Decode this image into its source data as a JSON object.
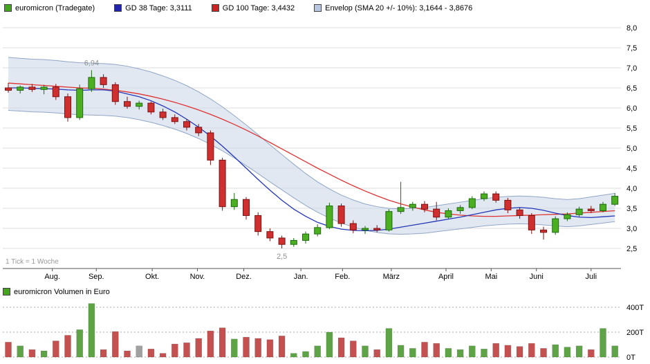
{
  "legend": {
    "items": [
      {
        "label": "euromicron (Tradegate)",
        "color": "#43a51c"
      },
      {
        "label": "GD 38 Tage: 3,3111",
        "color": "#2222aa"
      },
      {
        "label": "GD 100 Tage: 3,4432",
        "color": "#cc2222"
      },
      {
        "label": "Envelop (SMA 20 +/- 10%): 3,1644 - 3,8676",
        "color": "#b7c6e2"
      }
    ]
  },
  "volume_legend": {
    "label": "euromicron Volumen in Euro",
    "color": "#43a51c"
  },
  "chart_data": {
    "type": "candlestick",
    "title": "euromicron (Tradegate)",
    "tick_note": "1 Tick = 1 Woche",
    "months": [
      "Aug.",
      "Sep.",
      "Okt.",
      "Nov.",
      "Dez.",
      "Jan.",
      "Feb.",
      "März",
      "April",
      "Mai",
      "Juni",
      "Juli"
    ],
    "month_week_positions": [
      3.7,
      7.4,
      12.1,
      15.9,
      19.8,
      24.6,
      28.1,
      32.2,
      36.8,
      40.6,
      44.4,
      49.0
    ],
    "ylim": [
      2.0,
      8.0
    ],
    "y_ticks": [
      {
        "v": 8.0,
        "label": "8,0"
      },
      {
        "v": 7.5,
        "label": "7,5"
      },
      {
        "v": 7.0,
        "label": "7,0"
      },
      {
        "v": 6.5,
        "label": "6,5"
      },
      {
        "v": 6.0,
        "label": "6,0"
      },
      {
        "v": 5.5,
        "label": "5,5"
      },
      {
        "v": 5.0,
        "label": "5,0"
      },
      {
        "v": 4.5,
        "label": "4,5"
      },
      {
        "v": 4.0,
        "label": "4,0"
      },
      {
        "v": 3.5,
        "label": "3,5"
      },
      {
        "v": 3.0,
        "label": "3,0"
      },
      {
        "v": 2.5,
        "label": "2,5"
      }
    ],
    "annotations": [
      {
        "week": 7,
        "value": 6.94,
        "label": "6,94",
        "pos": "above"
      },
      {
        "week": 23,
        "value": 2.5,
        "label": "2,5",
        "pos": "below"
      }
    ],
    "candles": [
      [
        6.5,
        6.62,
        6.38,
        6.44
      ],
      [
        6.44,
        6.56,
        6.36,
        6.52
      ],
      [
        6.52,
        6.6,
        6.4,
        6.46
      ],
      [
        6.46,
        6.58,
        6.34,
        6.52
      ],
      [
        6.52,
        6.6,
        6.2,
        6.28
      ],
      [
        6.28,
        6.36,
        5.66,
        5.76
      ],
      [
        5.76,
        6.58,
        5.7,
        6.48
      ],
      [
        6.48,
        6.94,
        6.4,
        6.76
      ],
      [
        6.76,
        6.84,
        6.5,
        6.58
      ],
      [
        6.58,
        6.64,
        6.08,
        6.16
      ],
      [
        6.16,
        6.28,
        5.98,
        6.04
      ],
      [
        6.04,
        6.18,
        5.96,
        6.12
      ],
      [
        6.12,
        6.16,
        5.84,
        5.9
      ],
      [
        5.9,
        5.98,
        5.7,
        5.76
      ],
      [
        5.76,
        5.84,
        5.6,
        5.66
      ],
      [
        5.66,
        5.72,
        5.44,
        5.52
      ],
      [
        5.52,
        5.6,
        5.3,
        5.38
      ],
      [
        5.38,
        5.44,
        4.58,
        4.7
      ],
      [
        4.7,
        4.76,
        3.44,
        3.54
      ],
      [
        3.54,
        3.88,
        3.46,
        3.72
      ],
      [
        3.72,
        3.78,
        3.22,
        3.32
      ],
      [
        3.32,
        3.4,
        2.82,
        2.92
      ],
      [
        2.92,
        3.0,
        2.68,
        2.76
      ],
      [
        2.76,
        2.82,
        2.5,
        2.6
      ],
      [
        2.6,
        2.76,
        2.54,
        2.7
      ],
      [
        2.7,
        2.92,
        2.62,
        2.86
      ],
      [
        2.86,
        3.1,
        2.8,
        3.02
      ],
      [
        3.02,
        3.64,
        2.98,
        3.56
      ],
      [
        3.56,
        3.62,
        3.04,
        3.12
      ],
      [
        3.12,
        3.2,
        2.88,
        2.96
      ],
      [
        2.96,
        3.06,
        2.86,
        3.0
      ],
      [
        3.0,
        3.08,
        2.9,
        2.96
      ],
      [
        2.96,
        3.48,
        2.92,
        3.42
      ],
      [
        3.42,
        4.16,
        3.36,
        3.52
      ],
      [
        3.52,
        3.66,
        3.44,
        3.6
      ],
      [
        3.6,
        3.68,
        3.4,
        3.48
      ],
      [
        3.48,
        3.66,
        3.2,
        3.28
      ],
      [
        3.28,
        3.5,
        3.24,
        3.44
      ],
      [
        3.44,
        3.58,
        3.36,
        3.52
      ],
      [
        3.52,
        3.8,
        3.48,
        3.74
      ],
      [
        3.74,
        3.92,
        3.68,
        3.86
      ],
      [
        3.86,
        3.92,
        3.64,
        3.7
      ],
      [
        3.7,
        3.76,
        3.38,
        3.46
      ],
      [
        3.46,
        3.52,
        3.24,
        3.32
      ],
      [
        3.32,
        3.38,
        2.86,
        2.96
      ],
      [
        2.96,
        3.04,
        2.72,
        2.9
      ],
      [
        2.9,
        3.3,
        2.84,
        3.24
      ],
      [
        3.24,
        3.4,
        3.18,
        3.34
      ],
      [
        3.34,
        3.54,
        3.28,
        3.48
      ],
      [
        3.48,
        3.56,
        3.38,
        3.44
      ],
      [
        3.44,
        3.66,
        3.4,
        3.6
      ],
      [
        3.6,
        3.88,
        3.56,
        3.8
      ]
    ],
    "gd38": [
      6.5,
      6.5,
      6.49,
      6.48,
      6.47,
      6.45,
      6.44,
      6.45,
      6.45,
      6.42,
      6.35,
      6.28,
      6.18,
      6.05,
      5.9,
      5.72,
      5.52,
      5.3,
      5.05,
      4.78,
      4.5,
      4.22,
      3.95,
      3.7,
      3.48,
      3.3,
      3.15,
      3.05,
      2.98,
      2.95,
      2.94,
      2.95,
      2.98,
      3.03,
      3.08,
      3.13,
      3.18,
      3.23,
      3.28,
      3.34,
      3.4,
      3.46,
      3.5,
      3.52,
      3.5,
      3.45,
      3.38,
      3.32,
      3.28,
      3.27,
      3.29,
      3.31
    ],
    "gd100": [
      6.62,
      6.6,
      6.58,
      6.56,
      6.54,
      6.52,
      6.5,
      6.49,
      6.47,
      6.44,
      6.4,
      6.35,
      6.29,
      6.22,
      6.14,
      6.05,
      5.95,
      5.84,
      5.72,
      5.59,
      5.45,
      5.3,
      5.14,
      4.98,
      4.82,
      4.66,
      4.5,
      4.35,
      4.2,
      4.06,
      3.93,
      3.81,
      3.7,
      3.61,
      3.53,
      3.46,
      3.4,
      3.36,
      3.33,
      3.31,
      3.3,
      3.3,
      3.31,
      3.32,
      3.33,
      3.34,
      3.35,
      3.36,
      3.38,
      3.4,
      3.42,
      3.44
    ],
    "sma20": [
      6.6,
      6.58,
      6.56,
      6.55,
      6.53,
      6.5,
      6.48,
      6.47,
      6.46,
      6.44,
      6.4,
      6.34,
      6.27,
      6.18,
      6.08,
      5.96,
      5.82,
      5.66,
      5.48,
      5.28,
      5.07,
      4.85,
      4.62,
      4.4,
      4.18,
      3.97,
      3.78,
      3.62,
      3.48,
      3.37,
      3.28,
      3.22,
      3.18,
      3.17,
      3.18,
      3.2,
      3.24,
      3.28,
      3.32,
      3.36,
      3.4,
      3.43,
      3.45,
      3.46,
      3.45,
      3.43,
      3.4,
      3.38,
      3.4,
      3.44,
      3.48,
      3.52
    ],
    "envelope_pct": 0.1,
    "volume": {
      "unit": "T",
      "y_ticks": [
        {
          "v": 400,
          "label": "400T"
        },
        {
          "v": 200,
          "label": "200T"
        },
        {
          "v": 0,
          "label": "0T"
        }
      ],
      "values": [
        120,
        90,
        60,
        50,
        130,
        175,
        220,
        430,
        60,
        205,
        50,
        90,
        65,
        30,
        105,
        115,
        150,
        210,
        235,
        145,
        160,
        150,
        140,
        170,
        30,
        45,
        90,
        200,
        155,
        130,
        90,
        60,
        230,
        95,
        70,
        120,
        110,
        70,
        60,
        90,
        65,
        110,
        95,
        85,
        110,
        70,
        100,
        80,
        90,
        60,
        230,
        90
      ],
      "color_overrides": {
        "11": "neutral"
      }
    },
    "colors": {
      "up": "#4cae21",
      "up_border": "#1c6b0e",
      "down": "#d02f2f",
      "down_border": "#7d1212",
      "gd38_line": "#2437b8",
      "gd100_line": "#e03232",
      "envelope_fill": "#cdd9ea",
      "envelope_edge": "#90a6c6",
      "grid": "#dcdcdc",
      "axis": "#555555",
      "annotation": "#909090",
      "vol_up": "#5ea447",
      "vol_down": "#c45050",
      "vol_neutral": "#a0a0a0",
      "vol_grid": "#aaaaaa"
    }
  }
}
